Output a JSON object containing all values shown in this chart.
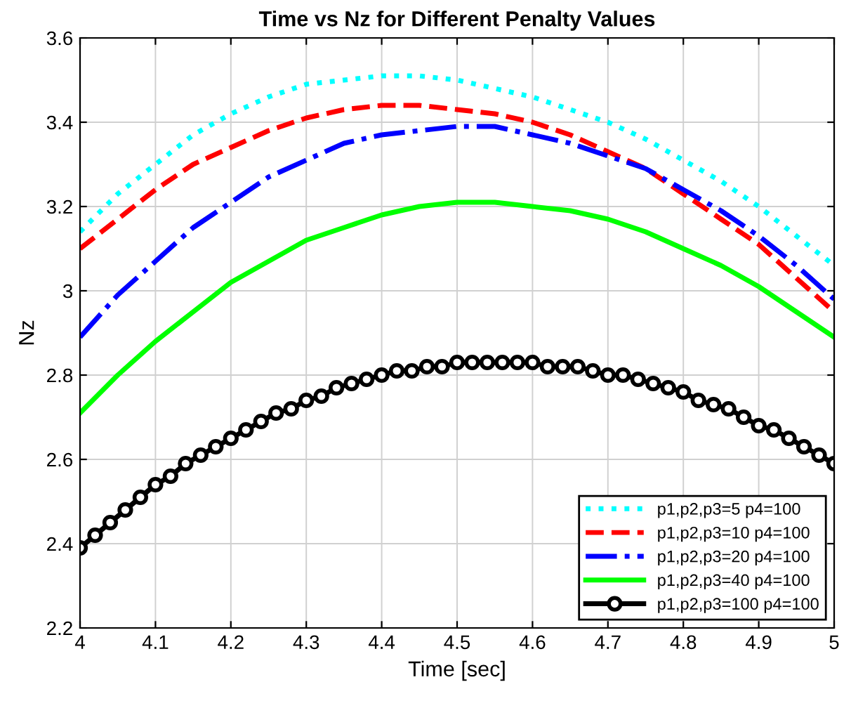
{
  "chart_data": {
    "type": "line",
    "title": "Time vs Nz for Different Penalty Values",
    "xlabel": "Time [sec]",
    "ylabel": "Nz",
    "xlim": [
      4,
      5
    ],
    "xticks": [
      4,
      4.1,
      4.2,
      4.3,
      4.4,
      4.5,
      4.6,
      4.7,
      4.8,
      4.9,
      5
    ],
    "ylim": [
      2.2,
      3.6
    ],
    "yticks": [
      2.2,
      2.4,
      2.6,
      2.8,
      3,
      3.2,
      3.4,
      3.6
    ],
    "grid": true,
    "legend": "bottom right",
    "series": [
      {
        "name": "p1,p2,p3=5 p4=100",
        "color": "#00ffff",
        "line_style": "dotted",
        "marker": "none",
        "x": [
          4.0,
          4.05,
          4.1,
          4.15,
          4.2,
          4.25,
          4.3,
          4.35,
          4.4,
          4.45,
          4.5,
          4.55,
          4.6,
          4.65,
          4.7,
          4.75,
          4.8,
          4.85,
          4.9,
          4.95,
          5.0
        ],
        "values": [
          3.14,
          3.23,
          3.3,
          3.37,
          3.42,
          3.46,
          3.49,
          3.5,
          3.51,
          3.51,
          3.5,
          3.48,
          3.46,
          3.43,
          3.4,
          3.36,
          3.31,
          3.26,
          3.2,
          3.13,
          3.06
        ]
      },
      {
        "name": "p1,p2,p3=10 p4=100",
        "color": "#ff0000",
        "line_style": "dashed",
        "marker": "none",
        "x": [
          4.0,
          4.05,
          4.1,
          4.15,
          4.2,
          4.25,
          4.3,
          4.35,
          4.4,
          4.45,
          4.5,
          4.55,
          4.6,
          4.65,
          4.7,
          4.75,
          4.8,
          4.85,
          4.9,
          4.95,
          5.0
        ],
        "values": [
          3.1,
          3.17,
          3.24,
          3.3,
          3.34,
          3.38,
          3.41,
          3.43,
          3.44,
          3.44,
          3.43,
          3.42,
          3.4,
          3.37,
          3.33,
          3.29,
          3.23,
          3.17,
          3.11,
          3.03,
          2.95
        ]
      },
      {
        "name": "p1,p2,p3=20 p4=100",
        "color": "#0000ff",
        "line_style": "dashdot",
        "marker": "none",
        "x": [
          4.0,
          4.05,
          4.1,
          4.15,
          4.2,
          4.25,
          4.3,
          4.35,
          4.4,
          4.45,
          4.5,
          4.55,
          4.6,
          4.65,
          4.7,
          4.75,
          4.8,
          4.85,
          4.9,
          4.95,
          5.0
        ],
        "values": [
          2.89,
          2.99,
          3.07,
          3.15,
          3.21,
          3.27,
          3.31,
          3.35,
          3.37,
          3.38,
          3.39,
          3.39,
          3.37,
          3.35,
          3.32,
          3.29,
          3.24,
          3.19,
          3.13,
          3.06,
          2.98
        ]
      },
      {
        "name": "p1,p2,p3=40 p4=100",
        "color": "#00ff00",
        "line_style": "solid",
        "marker": "none",
        "x": [
          4.0,
          4.05,
          4.1,
          4.15,
          4.2,
          4.25,
          4.3,
          4.35,
          4.4,
          4.45,
          4.5,
          4.55,
          4.6,
          4.65,
          4.7,
          4.75,
          4.8,
          4.85,
          4.9,
          4.95,
          5.0
        ],
        "values": [
          2.71,
          2.8,
          2.88,
          2.95,
          3.02,
          3.07,
          3.12,
          3.15,
          3.18,
          3.2,
          3.21,
          3.21,
          3.2,
          3.19,
          3.17,
          3.14,
          3.1,
          3.06,
          3.01,
          2.95,
          2.89
        ]
      },
      {
        "name": "p1,p2,p3=100 p4=100",
        "color": "#000000",
        "line_style": "solid",
        "marker": "circle",
        "x": [
          4.0,
          4.02,
          4.04,
          4.06,
          4.08,
          4.1,
          4.12,
          4.14,
          4.16,
          4.18,
          4.2,
          4.22,
          4.24,
          4.26,
          4.28,
          4.3,
          4.32,
          4.34,
          4.36,
          4.38,
          4.4,
          4.42,
          4.44,
          4.46,
          4.48,
          4.5,
          4.52,
          4.54,
          4.56,
          4.58,
          4.6,
          4.62,
          4.64,
          4.66,
          4.68,
          4.7,
          4.72,
          4.74,
          4.76,
          4.78,
          4.8,
          4.82,
          4.84,
          4.86,
          4.88,
          4.9,
          4.92,
          4.94,
          4.96,
          4.98,
          5.0
        ],
        "values": [
          2.39,
          2.42,
          2.45,
          2.48,
          2.51,
          2.54,
          2.56,
          2.59,
          2.61,
          2.63,
          2.65,
          2.67,
          2.69,
          2.71,
          2.72,
          2.74,
          2.75,
          2.77,
          2.78,
          2.79,
          2.8,
          2.81,
          2.81,
          2.82,
          2.82,
          2.83,
          2.83,
          2.83,
          2.83,
          2.83,
          2.83,
          2.82,
          2.82,
          2.82,
          2.81,
          2.8,
          2.8,
          2.79,
          2.78,
          2.77,
          2.76,
          2.74,
          2.73,
          2.72,
          2.7,
          2.68,
          2.67,
          2.65,
          2.63,
          2.61,
          2.59
        ]
      }
    ]
  }
}
